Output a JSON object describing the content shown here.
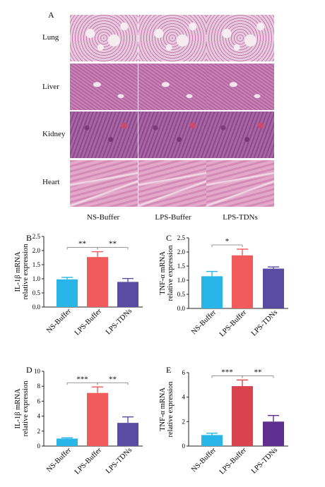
{
  "panel_a": {
    "letter": "A",
    "row_labels": [
      "Lung",
      "Liver",
      "Kidney",
      "Heart"
    ],
    "col_labels": [
      "NS-Buffer",
      "LPS-Buffer",
      "LPS-TDNs"
    ]
  },
  "chart_data": [
    {
      "panel": "B",
      "type": "bar",
      "categories": [
        "NS-Buffer",
        "LPS-Buffer",
        "LPS-TDNs"
      ],
      "values": [
        0.98,
        1.77,
        0.89
      ],
      "errors": [
        0.07,
        0.19,
        0.12
      ],
      "colors": [
        "#29b5e8",
        "#f15b5b",
        "#5a4ba3"
      ],
      "ylabel_line1": "IL-1β mRNA",
      "ylabel_line2": "relative expression",
      "ylim": [
        0,
        2.5
      ],
      "yticks": [
        "0.0",
        "0.5",
        "1.0",
        "1.5",
        "2.0",
        "2.5"
      ],
      "significance": [
        {
          "from": 0,
          "to": 1,
          "label": "**"
        },
        {
          "from": 1,
          "to": 2,
          "label": "**"
        }
      ]
    },
    {
      "panel": "C",
      "type": "bar",
      "categories": [
        "NS-Buffer",
        "LPS-Buffer",
        "LPS-TDNs"
      ],
      "values": [
        1.14,
        1.88,
        1.41
      ],
      "errors": [
        0.17,
        0.22,
        0.06
      ],
      "colors": [
        "#29b5e8",
        "#f15b5b",
        "#5a4ba3"
      ],
      "ylabel_line1": "TNF-α mRNA",
      "ylabel_line2": "relative expression",
      "ylim": [
        0,
        2.5
      ],
      "yticks": [
        "0.0",
        "0.5",
        "1.0",
        "1.5",
        "2.0",
        "2.5"
      ],
      "significance": [
        {
          "from": 0,
          "to": 1,
          "label": "*"
        }
      ]
    },
    {
      "panel": "D",
      "type": "bar",
      "categories": [
        "NS-Buffer",
        "LPS-Buffer",
        "LPS-TDNs"
      ],
      "values": [
        1.0,
        7.1,
        3.1
      ],
      "errors": [
        0.1,
        0.8,
        0.8
      ],
      "colors": [
        "#29b5e8",
        "#f15b5b",
        "#5a4ba3"
      ],
      "ylabel_line1": "IL-1β mRNA",
      "ylabel_line2": "relative expression",
      "ylim": [
        0,
        10
      ],
      "yticks": [
        "0",
        "2",
        "4",
        "6",
        "8",
        "10"
      ],
      "significance": [
        {
          "from": 0,
          "to": 1,
          "label": "***"
        },
        {
          "from": 1,
          "to": 2,
          "label": "**"
        }
      ]
    },
    {
      "panel": "E",
      "type": "bar",
      "categories": [
        "NS-Buffer",
        "LPS-Buffer",
        "LPS-TDNs"
      ],
      "values": [
        0.9,
        4.9,
        2.0
      ],
      "errors": [
        0.15,
        0.5,
        0.5
      ],
      "colors": [
        "#29b5e8",
        "#d9434e",
        "#5e2f8f"
      ],
      "ylabel_line1": "TNF-α mRNA",
      "ylabel_line2": "relative expression",
      "ylim": [
        0,
        6
      ],
      "yticks": [
        "0",
        "2",
        "4",
        "6"
      ],
      "significance": [
        {
          "from": 0,
          "to": 1,
          "label": "***"
        },
        {
          "from": 1,
          "to": 2,
          "label": "**"
        }
      ]
    }
  ]
}
